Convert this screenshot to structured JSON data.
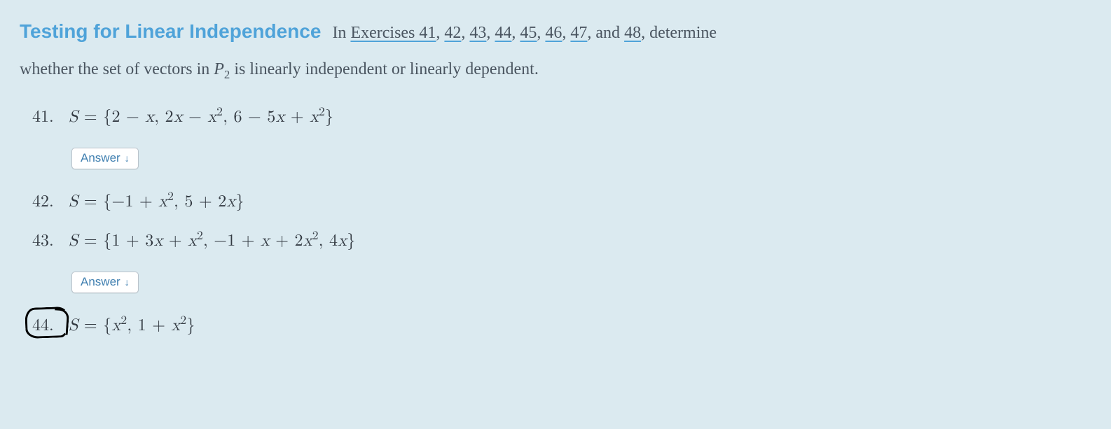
{
  "colors": {
    "background": "#dbeaf0",
    "title": "#4fa3d9",
    "body_text": "#4a5560",
    "math_text": "#333a42",
    "link_underline": "#4fa3d9",
    "button_bg": "#ffffff",
    "button_border": "#b9c2ca",
    "button_text": "#3f7fb0",
    "annotation": "#000000"
  },
  "typography": {
    "title_family": "Verdana, Arial, sans-serif",
    "title_size_pt": 21,
    "title_weight": 700,
    "body_family": "Georgia, serif",
    "body_size_pt": 18,
    "math_family": "Latin Modern Math, Cambria Math, Georgia, serif",
    "button_family": "Arial, sans-serif",
    "button_size_pt": 13
  },
  "header": {
    "title": "Testing for Linear Independence",
    "lead_in": "In ",
    "link_prefix": "Exercises ",
    "links": [
      "41",
      "42",
      "43",
      "44",
      "45",
      "46",
      "47",
      "48"
    ],
    "link_sep": ", ",
    "link_last_sep": ", and ",
    "trail": ", determine"
  },
  "body_text": {
    "line": "whether the set of vectors in ",
    "space_symbol": "P",
    "space_subscript": "2",
    "after": " is linearly independent or linearly dependent."
  },
  "answer_button": {
    "label": "Answer",
    "icon": "↓"
  },
  "exercises": [
    {
      "num": "41.",
      "math_html": "<i>S</i> = {2 − <i>x</i>, 2<i>x</i> − <i>x</i><span class=\"sup\">2</span>, 6 − 5<i>x</i> + <i>x</i><span class=\"sup\">2</span>}",
      "has_answer": true,
      "circled": false
    },
    {
      "num": "42.",
      "math_html": "<i>S</i> = {−1 + <i>x</i><span class=\"sup\">2</span>, 5 + 2<i>x</i>}",
      "has_answer": false,
      "circled": false
    },
    {
      "num": "43.",
      "math_html": "<i>S</i> = {1 + 3<i>x</i> + <i>x</i><span class=\"sup\">2</span>, −1 + <i>x</i> + 2<i>x</i><span class=\"sup\">2</span>, 4<i>x</i>}",
      "has_answer": true,
      "circled": false
    },
    {
      "num": "44.",
      "math_html": "<i>S</i> = {<i>x</i><span class=\"sup\">2</span>, 1 + <i>x</i><span class=\"sup\">2</span>}",
      "has_answer": false,
      "circled": true
    }
  ]
}
